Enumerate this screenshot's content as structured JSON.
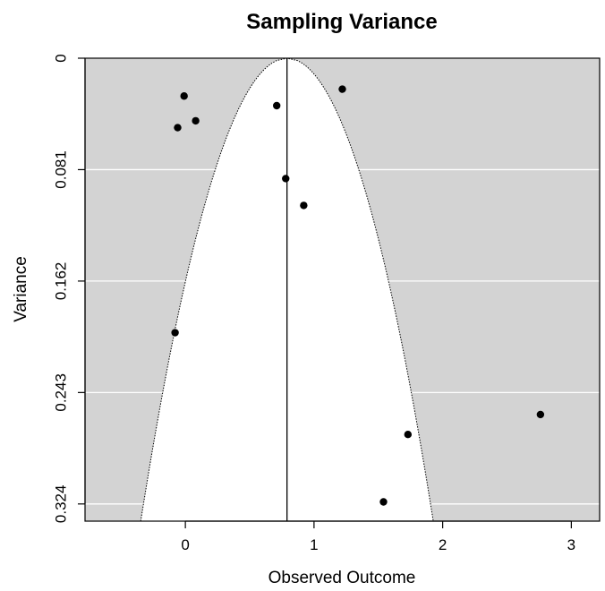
{
  "chart_data": {
    "type": "scatter",
    "title": "Sampling Variance",
    "xlabel": "Observed Outcome",
    "ylabel": "Variance",
    "xlim": [
      -0.78,
      3.22
    ],
    "ylim": [
      0,
      0.3365
    ],
    "y_reversed": true,
    "x_ticks": [
      "0",
      "1",
      "2",
      "3"
    ],
    "x_tick_values": [
      0,
      1,
      2,
      3
    ],
    "y_ticks": [
      "0",
      "0.081",
      "0.162",
      "0.243",
      "0.324"
    ],
    "y_tick_values": [
      0,
      0.081,
      0.162,
      0.243,
      0.324
    ],
    "grid": true,
    "colors": {
      "panel_background": "#d3d3d3",
      "funnel_fill": "#ffffff",
      "gridline": "#ffffff",
      "point": "#000000"
    },
    "reference_line_x": 0.79,
    "funnel": {
      "center": 0.79,
      "z": 1.96
    },
    "points": [
      {
        "x": -0.01,
        "y": 0.0275
      },
      {
        "x": -0.06,
        "y": 0.0505
      },
      {
        "x": 0.08,
        "y": 0.0455
      },
      {
        "x": 0.71,
        "y": 0.0345
      },
      {
        "x": 1.22,
        "y": 0.0225
      },
      {
        "x": 0.78,
        "y": 0.0875
      },
      {
        "x": 0.92,
        "y": 0.107
      },
      {
        "x": -0.08,
        "y": 0.1995
      },
      {
        "x": 1.73,
        "y": 0.2735
      },
      {
        "x": 2.76,
        "y": 0.259
      },
      {
        "x": 1.54,
        "y": 0.3225
      }
    ]
  }
}
